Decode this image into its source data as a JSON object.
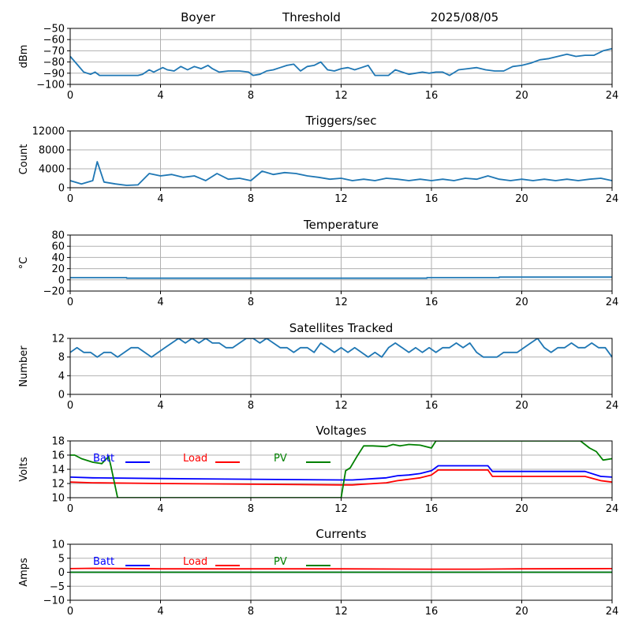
{
  "header": {
    "station": "Boyer",
    "mode": "Threshold",
    "date": "2025/08/05"
  },
  "colors": {
    "series": "#1f77b4",
    "batt": "#0000ff",
    "load": "#ff0000",
    "pv": "#008000",
    "grid": "#b0b0b0"
  },
  "chart_data": [
    {
      "type": "line",
      "title": "",
      "xlabel": "",
      "ylabel": "dBm",
      "xlim": [
        0,
        24
      ],
      "ylim": [
        -100,
        -50
      ],
      "xticks": [
        0,
        4,
        8,
        12,
        16,
        20,
        24
      ],
      "yticks": [
        -100,
        -90,
        -80,
        -70,
        -60,
        -50
      ],
      "grid": true,
      "series": [
        {
          "x": [
            0,
            0.3,
            0.6,
            0.9,
            1.1,
            1.3,
            1.5,
            2,
            2.5,
            3,
            3.2,
            3.5,
            3.7,
            3.9,
            4.1,
            4.3,
            4.6,
            4.9,
            5.2,
            5.5,
            5.8,
            6.1,
            6.3,
            6.6,
            7,
            7.5,
            7.9,
            8.1,
            8.4,
            8.7,
            9,
            9.3,
            9.6,
            9.9,
            10.2,
            10.5,
            10.8,
            11.1,
            11.4,
            11.7,
            12,
            12.3,
            12.6,
            12.9,
            13.2,
            13.5,
            13.8,
            14.1,
            14.4,
            14.7,
            15,
            15.3,
            15.6,
            15.9,
            16.2,
            16.5,
            16.8,
            17.2,
            17.6,
            18,
            18.4,
            18.8,
            19.2,
            19.6,
            20,
            20.4,
            20.8,
            21.2,
            21.6,
            22,
            22.4,
            22.8,
            23.2,
            23.6,
            24
          ],
          "y": [
            -75,
            -82,
            -89,
            -91,
            -89,
            -92,
            -92,
            -92,
            -92,
            -92,
            -91,
            -87,
            -89,
            -87,
            -85,
            -87,
            -88,
            -84,
            -87,
            -84,
            -86,
            -83,
            -86,
            -89,
            -88,
            -88,
            -89,
            -92,
            -91,
            -88,
            -87,
            -85,
            -83,
            -82,
            -88,
            -84,
            -83,
            -80,
            -87,
            -88,
            -86,
            -85,
            -87,
            -85,
            -83,
            -92,
            -92,
            -92,
            -87,
            -89,
            -91,
            -90,
            -89,
            -90,
            -89,
            -89,
            -92,
            -87,
            -86,
            -85,
            -87,
            -88,
            -88,
            -84,
            -83,
            -81,
            -78,
            -77,
            -75,
            -73,
            -75,
            -74,
            -74,
            -70,
            -68
          ]
        }
      ]
    },
    {
      "type": "line",
      "title": "Triggers/sec",
      "xlabel": "",
      "ylabel": "Count",
      "xlim": [
        0,
        24
      ],
      "ylim": [
        0,
        12000
      ],
      "xticks": [
        0,
        4,
        8,
        12,
        16,
        20,
        24
      ],
      "yticks": [
        0,
        4000,
        8000,
        12000
      ],
      "grid": true,
      "series": [
        {
          "x": [
            0,
            0.5,
            1,
            1.2,
            1.5,
            2,
            2.5,
            3,
            3.5,
            4,
            4.5,
            5,
            5.5,
            6,
            6.5,
            7,
            7.5,
            8,
            8.5,
            9,
            9.5,
            10,
            10.5,
            11,
            11.5,
            12,
            12.5,
            13,
            13.5,
            14,
            14.5,
            15,
            15.5,
            16,
            16.5,
            17,
            17.5,
            18,
            18.5,
            19,
            19.5,
            20,
            20.5,
            21,
            21.5,
            22,
            22.5,
            23,
            23.5,
            24
          ],
          "y": [
            1500,
            800,
            1500,
            5500,
            1200,
            800,
            500,
            600,
            3000,
            2500,
            2800,
            2200,
            2500,
            1500,
            3000,
            1800,
            2000,
            1500,
            3500,
            2800,
            3200,
            3000,
            2500,
            2200,
            1800,
            2000,
            1500,
            1800,
            1500,
            2000,
            1800,
            1500,
            1800,
            1500,
            1800,
            1500,
            2000,
            1800,
            2500,
            1800,
            1500,
            1800,
            1500,
            1800,
            1500,
            1800,
            1500,
            1800,
            2000,
            1500
          ]
        }
      ]
    },
    {
      "type": "line",
      "title": "Temperature",
      "xlabel": "",
      "ylabel": "°C",
      "xlim": [
        0,
        24
      ],
      "ylim": [
        -20,
        80
      ],
      "xticks": [
        0,
        4,
        8,
        12,
        16,
        20,
        24
      ],
      "yticks": [
        -20,
        0,
        20,
        40,
        60,
        80
      ],
      "grid": true,
      "series": [
        {
          "x": [
            0,
            2.5,
            2.5,
            15.8,
            15.8,
            19,
            19,
            24
          ],
          "y": [
            4,
            4,
            3,
            3,
            4,
            4,
            5,
            5
          ]
        }
      ]
    },
    {
      "type": "line",
      "title": "Satellites Tracked",
      "xlabel": "",
      "ylabel": "Number",
      "xlim": [
        0,
        24
      ],
      "ylim": [
        0,
        12
      ],
      "xticks": [
        0,
        4,
        8,
        12,
        16,
        20,
        24
      ],
      "yticks": [
        0,
        4,
        8,
        12
      ],
      "grid": true,
      "series": [
        {
          "x": [
            0,
            0.3,
            0.6,
            0.9,
            1.2,
            1.5,
            1.8,
            2.1,
            2.4,
            2.7,
            3,
            3.3,
            3.6,
            3.9,
            4.2,
            4.5,
            4.8,
            5.1,
            5.4,
            5.7,
            6,
            6.3,
            6.6,
            6.9,
            7.2,
            7.5,
            7.8,
            8.1,
            8.4,
            8.7,
            9,
            9.3,
            9.6,
            9.9,
            10.2,
            10.5,
            10.8,
            11.1,
            11.4,
            11.7,
            12,
            12.3,
            12.6,
            12.9,
            13.2,
            13.5,
            13.8,
            14.1,
            14.4,
            14.7,
            15,
            15.3,
            15.6,
            15.9,
            16.2,
            16.5,
            16.8,
            17.1,
            17.4,
            17.7,
            18,
            18.3,
            18.6,
            18.9,
            19.2,
            19.5,
            19.8,
            20.1,
            20.4,
            20.7,
            21,
            21.3,
            21.6,
            21.9,
            22.2,
            22.5,
            22.8,
            23.1,
            23.4,
            23.7,
            24
          ],
          "y": [
            9,
            10,
            9,
            9,
            8,
            9,
            9,
            8,
            9,
            10,
            10,
            9,
            8,
            9,
            10,
            11,
            12,
            11,
            12,
            11,
            12,
            11,
            11,
            10,
            10,
            11,
            12,
            12,
            11,
            12,
            11,
            10,
            10,
            9,
            10,
            10,
            9,
            11,
            10,
            9,
            10,
            9,
            10,
            9,
            8,
            9,
            8,
            10,
            11,
            10,
            9,
            10,
            9,
            10,
            9,
            10,
            10,
            11,
            10,
            11,
            9,
            8,
            8,
            8,
            9,
            9,
            9,
            10,
            11,
            12,
            10,
            9,
            10,
            10,
            11,
            10,
            10,
            11,
            10,
            10,
            8
          ]
        }
      ]
    },
    {
      "type": "line",
      "title": "Voltages",
      "xlabel": "",
      "ylabel": "Volts",
      "xlim": [
        0,
        24
      ],
      "ylim": [
        10,
        18
      ],
      "xticks": [
        0,
        4,
        8,
        12,
        16,
        20,
        24
      ],
      "yticks": [
        10,
        12,
        14,
        16,
        18
      ],
      "grid": true,
      "legend": "top-left",
      "series": [
        {
          "name": "Batt",
          "x": [
            0,
            1,
            4,
            8,
            12,
            12.5,
            13,
            13.5,
            14,
            14.5,
            15,
            15.5,
            16,
            16.3,
            18.5,
            18.7,
            22.8,
            23.5,
            24
          ],
          "y": [
            12.9,
            12.8,
            12.7,
            12.6,
            12.5,
            12.5,
            12.6,
            12.7,
            12.8,
            13.1,
            13.2,
            13.4,
            13.8,
            14.5,
            14.5,
            13.7,
            13.7,
            13.0,
            12.9
          ]
        },
        {
          "name": "Load",
          "x": [
            0,
            1,
            4,
            8,
            12,
            12.5,
            13,
            13.5,
            14,
            14.5,
            15,
            15.5,
            16,
            16.3,
            18.5,
            18.7,
            22.8,
            23.5,
            24
          ],
          "y": [
            12.2,
            12.1,
            12.0,
            11.9,
            11.8,
            11.8,
            11.9,
            12.0,
            12.1,
            12.4,
            12.6,
            12.8,
            13.2,
            13.9,
            13.9,
            13.0,
            13.0,
            12.4,
            12.2
          ]
        },
        {
          "name": "PV",
          "x": [
            0,
            0.2,
            0.5,
            1.0,
            1.4,
            1.7,
            1.8,
            2.1,
            12.0,
            12.2,
            12.4,
            12.7,
            13.0,
            13.4,
            14.0,
            14.3,
            14.6,
            15.0,
            15.5,
            16.0,
            16.2,
            22.6,
            23.0,
            23.3,
            23.6,
            24
          ],
          "y": [
            16.0,
            16.0,
            15.5,
            15.0,
            14.8,
            15.8,
            14.5,
            10.0,
            10.0,
            13.8,
            14.2,
            15.8,
            17.3,
            17.3,
            17.2,
            17.5,
            17.3,
            17.5,
            17.4,
            17.0,
            18.0,
            18.0,
            17.0,
            16.5,
            15.3,
            15.5
          ]
        }
      ]
    },
    {
      "type": "line",
      "title": "Currents",
      "xlabel": "",
      "ylabel": "Amps",
      "xlim": [
        0,
        24
      ],
      "ylim": [
        -10,
        10
      ],
      "xticks": [
        0,
        4,
        8,
        12,
        16,
        20,
        24
      ],
      "yticks": [
        -10,
        -5,
        0,
        5,
        10
      ],
      "grid": true,
      "legend": "top-left",
      "series": [
        {
          "name": "Batt",
          "x": [
            0,
            24
          ],
          "y": [
            0,
            0
          ]
        },
        {
          "name": "Load",
          "x": [
            0,
            1,
            4,
            8,
            12,
            16,
            18,
            20,
            24
          ],
          "y": [
            1.3,
            1.4,
            1.2,
            1.2,
            1.2,
            1.1,
            1.1,
            1.2,
            1.3
          ]
        },
        {
          "name": "PV",
          "x": [
            0,
            24
          ],
          "y": [
            0,
            0
          ]
        }
      ]
    }
  ]
}
